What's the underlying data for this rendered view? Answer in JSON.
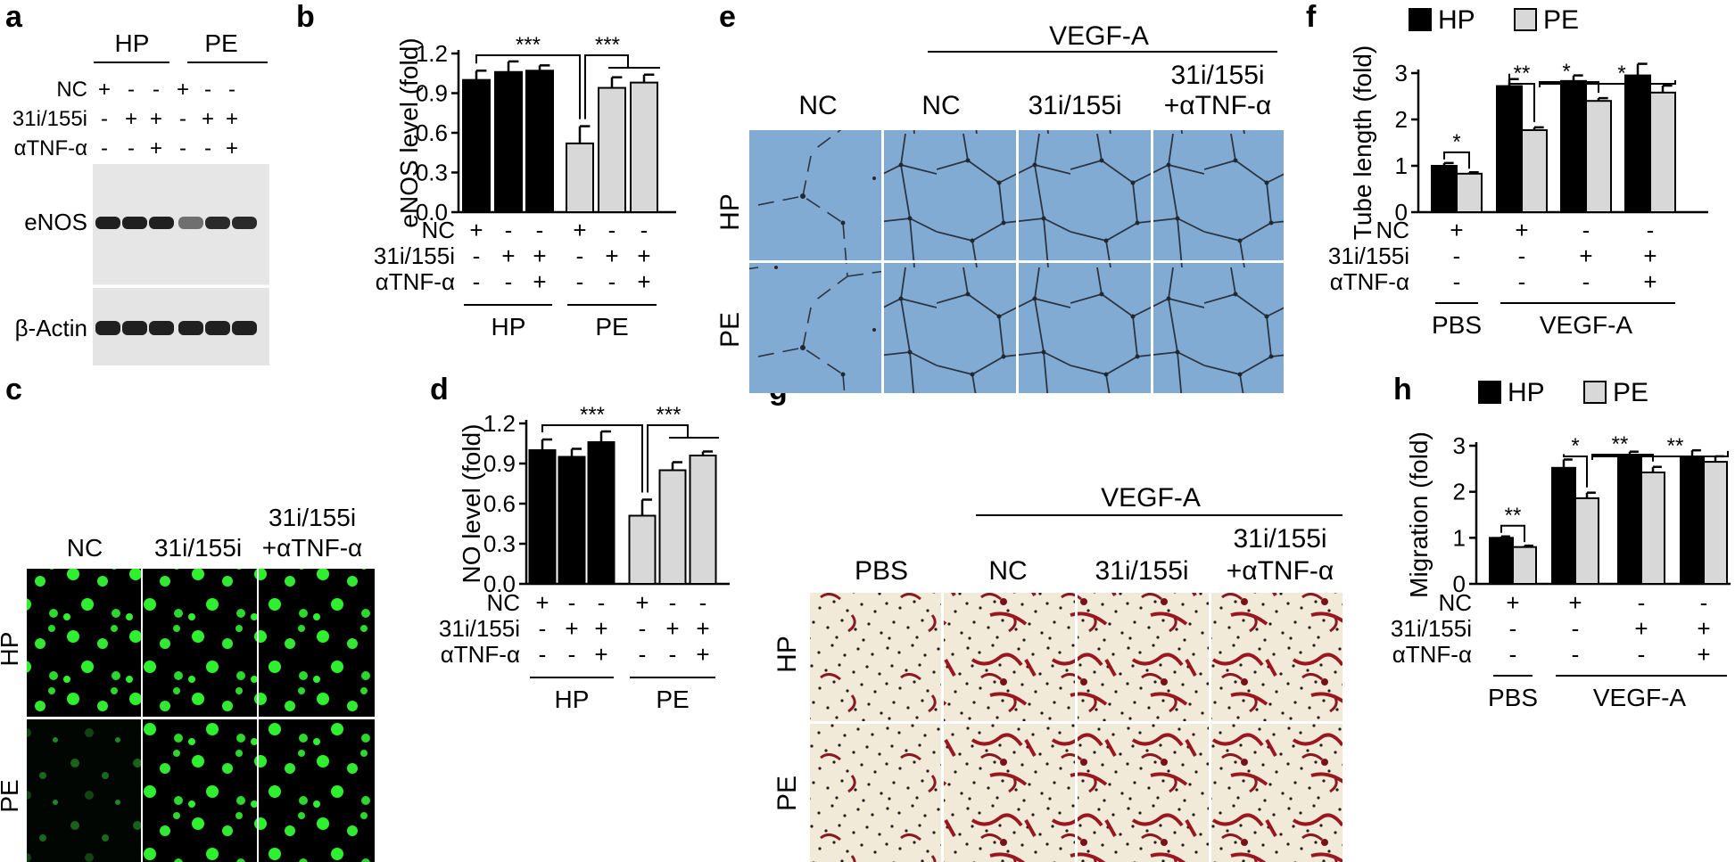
{
  "figure": {
    "panel_letters": [
      "a",
      "b",
      "c",
      "d",
      "e",
      "f",
      "g",
      "h"
    ],
    "colors": {
      "hp": "#000000",
      "pe": "#d8d8d8",
      "blot_bg": "#e6e6e6",
      "band": "#202020",
      "tube_bg": "#82abd3",
      "gfp_bg": "#000000",
      "gfp": "#2ff02f",
      "stain_bg": "#f2ead8",
      "stain": "#8a1a22"
    }
  },
  "panel_a": {
    "letter": "a",
    "groups": [
      "HP",
      "PE"
    ],
    "row_labels": [
      "NC",
      "31i/155i",
      "αTNF-α"
    ],
    "signs": [
      [
        "+",
        "-",
        "-",
        "+",
        "-",
        "-"
      ],
      [
        "-",
        "+",
        "+",
        "-",
        "+",
        "+"
      ],
      [
        "-",
        "-",
        "+",
        "-",
        "-",
        "+"
      ]
    ],
    "blots": [
      "eNOS",
      "β-Actin"
    ]
  },
  "panel_c": {
    "letter": "c",
    "columns": [
      "NC",
      "31i/155i",
      "31i/155i",
      "+αTNF-α"
    ],
    "rows": [
      "HP",
      "PE"
    ]
  },
  "panel_e": {
    "letter": "e",
    "treatment": "VEGF-A",
    "columns": [
      "NC",
      "NC",
      "31i/155i",
      "31i/155i",
      "+αTNF-α"
    ],
    "rows": [
      "HP",
      "PE"
    ]
  },
  "panel_g": {
    "letter": "g",
    "treatment": "VEGF-A",
    "columns": [
      "PBS",
      "NC",
      "31i/155i",
      "31i/155i",
      "+αTNF-α"
    ],
    "rows": [
      "HP",
      "PE"
    ]
  },
  "chart_data": [
    {
      "id": "b",
      "type": "bar",
      "letter": "b",
      "ylabel": "eNOS level (fold)",
      "ylim": [
        0,
        1.2
      ],
      "yticks": [
        "0.0",
        "0.3",
        "0.6",
        "0.9",
        "1.2"
      ],
      "categories": [
        "HP NC",
        "HP 31i/155i",
        "HP 31i/155i+αTNF-α",
        "PE NC",
        "PE 31i/155i",
        "PE 31i/155i+αTNF-α"
      ],
      "values": [
        1.0,
        1.06,
        1.07,
        0.52,
        0.94,
        0.98
      ],
      "errors": [
        0.07,
        0.08,
        0.04,
        0.13,
        0.08,
        0.06
      ],
      "groups": [
        "hp",
        "hp",
        "hp",
        "pe",
        "pe",
        "pe"
      ],
      "row_labels": [
        "NC",
        "31i/155i",
        "αTNF-α"
      ],
      "signs": [
        [
          "+",
          "-",
          "-",
          "+",
          "-",
          "-"
        ],
        [
          "-",
          "+",
          "+",
          "-",
          "+",
          "+"
        ],
        [
          "-",
          "-",
          "+",
          "-",
          "-",
          "+"
        ]
      ],
      "group_labels": [
        "HP",
        "PE"
      ],
      "significance": [
        {
          "from": 0,
          "to": 3,
          "label": "***"
        },
        {
          "from": 3,
          "to": 4.5,
          "label": "***"
        }
      ]
    },
    {
      "id": "d",
      "type": "bar",
      "letter": "d",
      "ylabel": "NO level (fold)",
      "ylim": [
        0,
        1.2
      ],
      "yticks": [
        "0.0",
        "0.3",
        "0.6",
        "0.9",
        "1.2"
      ],
      "categories": [
        "HP NC",
        "HP 31i/155i",
        "HP 31i/155i+αTNF-α",
        "PE NC",
        "PE 31i/155i",
        "PE 31i/155i+αTNF-α"
      ],
      "values": [
        1.0,
        0.95,
        1.06,
        0.51,
        0.85,
        0.96
      ],
      "errors": [
        0.08,
        0.06,
        0.08,
        0.12,
        0.06,
        0.03
      ],
      "groups": [
        "hp",
        "hp",
        "hp",
        "pe",
        "pe",
        "pe"
      ],
      "row_labels": [
        "NC",
        "31i/155i",
        "αTNF-α"
      ],
      "signs": [
        [
          "+",
          "-",
          "-",
          "+",
          "-",
          "-"
        ],
        [
          "-",
          "+",
          "+",
          "-",
          "+",
          "+"
        ],
        [
          "-",
          "-",
          "+",
          "-",
          "-",
          "+"
        ]
      ],
      "group_labels": [
        "HP",
        "PE"
      ],
      "significance": [
        {
          "from": 0,
          "to": 3,
          "label": "***"
        },
        {
          "from": 3,
          "to": 4.5,
          "label": "***"
        }
      ]
    },
    {
      "id": "f",
      "type": "bar",
      "letter": "f",
      "ylabel": "Tube length (fold)",
      "ylim": [
        0,
        3
      ],
      "yticks": [
        "0",
        "1",
        "2",
        "3"
      ],
      "legend": [
        "HP",
        "PE"
      ],
      "series": [
        {
          "name": "HP",
          "values": [
            1.0,
            2.72,
            2.83,
            2.95
          ],
          "errors": [
            0.06,
            0.15,
            0.12,
            0.25
          ]
        },
        {
          "name": "PE",
          "values": [
            0.83,
            1.77,
            2.4,
            2.58
          ],
          "errors": [
            0.03,
            0.06,
            0.06,
            0.15
          ]
        }
      ],
      "row_labels": [
        "NC",
        "31i/155i",
        "αTNF-α"
      ],
      "signs": [
        [
          "+",
          "+",
          "-",
          "-"
        ],
        [
          "-",
          "-",
          "+",
          "+"
        ],
        [
          "-",
          "-",
          "-",
          "+"
        ]
      ],
      "group_labels": [
        "PBS",
        "VEGF-A"
      ],
      "significance": [
        {
          "label": "*"
        },
        {
          "label": "**"
        },
        {
          "label": "*"
        },
        {
          "label": "*"
        }
      ]
    },
    {
      "id": "h",
      "type": "bar",
      "letter": "h",
      "ylabel": "Migration (fold)",
      "ylim": [
        0,
        3
      ],
      "yticks": [
        "0",
        "1",
        "2",
        "3"
      ],
      "legend": [
        "HP",
        "PE"
      ],
      "series": [
        {
          "name": "HP",
          "values": [
            1.0,
            2.52,
            2.75,
            2.75
          ],
          "errors": [
            0.03,
            0.18,
            0.12,
            0.15
          ]
        },
        {
          "name": "PE",
          "values": [
            0.8,
            1.86,
            2.42,
            2.65
          ],
          "errors": [
            0.03,
            0.12,
            0.12,
            0.12
          ]
        }
      ],
      "row_labels": [
        "NC",
        "31i/155i",
        "αTNF-α"
      ],
      "signs": [
        [
          "+",
          "+",
          "-",
          "-"
        ],
        [
          "-",
          "-",
          "+",
          "+"
        ],
        [
          "-",
          "-",
          "-",
          "+"
        ]
      ],
      "group_labels": [
        "PBS",
        "VEGF-A"
      ],
      "significance": [
        {
          "label": "**"
        },
        {
          "label": "*"
        },
        {
          "label": "**"
        },
        {
          "label": "**"
        }
      ]
    }
  ]
}
